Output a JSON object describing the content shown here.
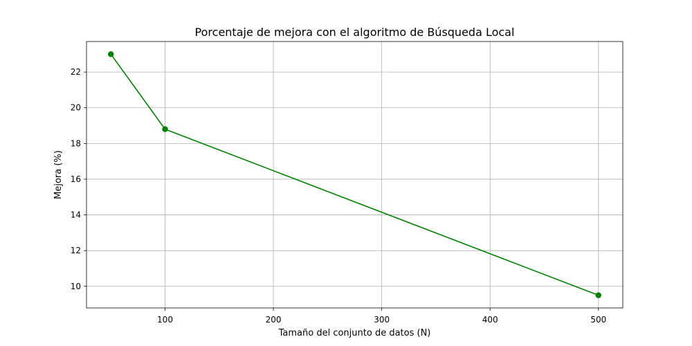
{
  "chart_data": {
    "type": "line",
    "title": "Porcentaje de mejora con el algoritmo de Búsqueda Local",
    "xlabel": "Tamaño del conjunto de datos (N)",
    "ylabel": "Mejora (%)",
    "x": [
      50,
      100,
      500
    ],
    "series": [
      {
        "values": [
          23.0,
          18.8,
          9.5
        ],
        "color": "#008000",
        "marker": "circle"
      }
    ],
    "xlim": [
      27.5,
      522.5
    ],
    "ylim": [
      8.79,
      23.71
    ],
    "xticks": [
      100,
      200,
      300,
      400,
      500
    ],
    "yticks": [
      10,
      12,
      14,
      16,
      18,
      20,
      22
    ],
    "grid": true
  }
}
